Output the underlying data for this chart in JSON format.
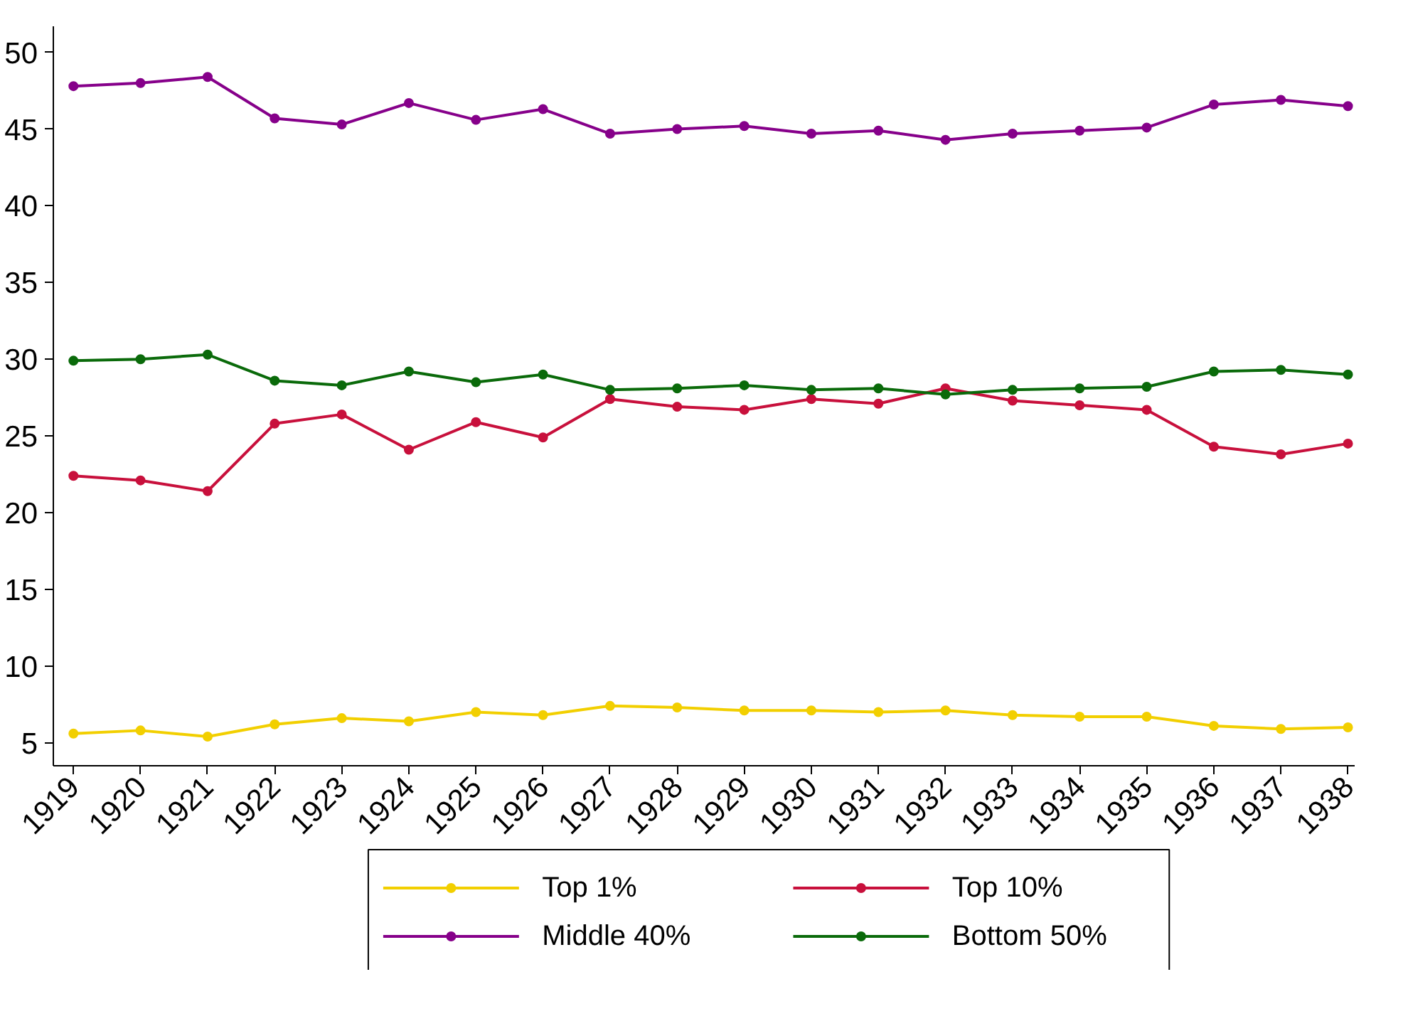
{
  "chart_data": {
    "type": "line",
    "categories": [
      "1919",
      "1920",
      "1921",
      "1922",
      "1923",
      "1924",
      "1925",
      "1926",
      "1927",
      "1928",
      "1929",
      "1930",
      "1931",
      "1932",
      "1933",
      "1934",
      "1935",
      "1936",
      "1937",
      "1938"
    ],
    "series": [
      {
        "name": "Top 1%",
        "color": "#f2cf00",
        "values": [
          5.6,
          5.8,
          5.4,
          6.2,
          6.6,
          6.4,
          7.0,
          6.8,
          7.4,
          7.3,
          7.1,
          7.1,
          7.0,
          7.1,
          6.8,
          6.7,
          6.7,
          6.1,
          5.9,
          6.0
        ]
      },
      {
        "name": "Top 10%",
        "color": "#c8103c",
        "values": [
          22.4,
          22.1,
          21.4,
          25.8,
          26.4,
          24.1,
          25.9,
          24.9,
          27.4,
          26.9,
          26.7,
          27.4,
          27.1,
          28.1,
          27.3,
          27.0,
          26.7,
          24.3,
          23.8,
          24.5
        ]
      },
      {
        "name": "Middle 40%",
        "color": "#86008a",
        "values": [
          47.8,
          48.0,
          48.4,
          45.7,
          45.3,
          46.7,
          45.6,
          46.3,
          44.7,
          45.0,
          45.2,
          44.7,
          44.9,
          44.3,
          44.7,
          44.9,
          45.1,
          46.6,
          46.9,
          46.5
        ]
      },
      {
        "name": "Bottom 50%",
        "color": "#0a6a0a",
        "values": [
          29.9,
          30.0,
          30.3,
          28.6,
          28.3,
          29.2,
          28.5,
          29.0,
          28.0,
          28.1,
          28.3,
          28.0,
          28.1,
          27.7,
          28.0,
          28.1,
          28.2,
          29.2,
          29.3,
          29.0
        ]
      }
    ],
    "ylim": [
      3.5,
      51.7
    ],
    "yticks": [
      5,
      10,
      15,
      20,
      25,
      30,
      35,
      40,
      45,
      50
    ],
    "grid": false,
    "legend": "bottom",
    "marker": "circle",
    "line_style": "solid"
  }
}
